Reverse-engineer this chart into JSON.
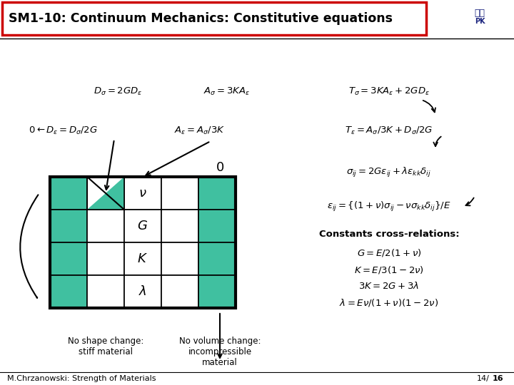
{
  "title": "SM1-10: Continuum Mechanics: Constitutive equations",
  "title_box_color": "#cc0000",
  "title_bg_color": "#ffffff",
  "title_text_color": "#000000",
  "bg_color": "#ffffff",
  "teal_color": "#40c0a0",
  "footer_text": "M.Chrzanowski: Strength of Materials",
  "page_number": "14/",
  "page_number_bold": "16"
}
